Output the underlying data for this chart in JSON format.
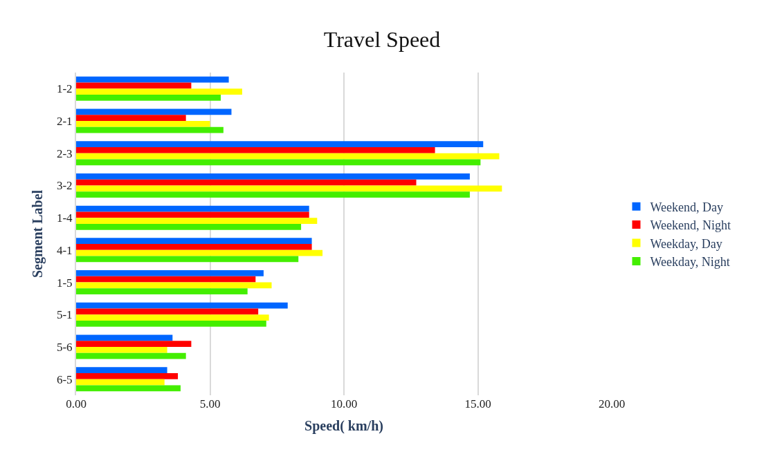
{
  "chart_data": {
    "type": "bar",
    "orientation": "horizontal",
    "title": "Travel Speed",
    "xlabel": "Speed( km/h)",
    "ylabel": "Segment Label",
    "categories": [
      "1-2",
      "2-1",
      "2-3",
      "3-2",
      "1-4",
      "4-1",
      "1-5",
      "5-1",
      "5-6",
      "6-5"
    ],
    "series": [
      {
        "name": "Weekend, Day",
        "color": "#0066ff",
        "values": [
          5.7,
          5.8,
          15.2,
          14.7,
          8.7,
          8.8,
          7.0,
          7.9,
          3.6,
          3.4
        ]
      },
      {
        "name": "Weekend, Night",
        "color": "#ff0000",
        "values": [
          4.3,
          4.1,
          13.4,
          12.7,
          8.7,
          8.8,
          6.7,
          6.8,
          4.3,
          3.8
        ]
      },
      {
        "name": "Weekday, Day",
        "color": "#ffff00",
        "values": [
          6.2,
          5.0,
          15.8,
          15.9,
          9.0,
          9.2,
          7.3,
          7.2,
          3.4,
          3.3
        ]
      },
      {
        "name": "Weekday, Night",
        "color": "#44ee00",
        "values": [
          5.4,
          5.5,
          15.1,
          14.7,
          8.4,
          8.3,
          6.4,
          7.1,
          4.1,
          3.9
        ]
      }
    ],
    "xlim": [
      0,
      20
    ],
    "xticks": [
      {
        "value": 0,
        "label": "0.00"
      },
      {
        "value": 5,
        "label": "5.00"
      },
      {
        "value": 10,
        "label": "10.00"
      },
      {
        "value": 15,
        "label": "15.00"
      },
      {
        "value": 20,
        "label": "20.00"
      }
    ],
    "grid": "x",
    "legend": "right"
  }
}
